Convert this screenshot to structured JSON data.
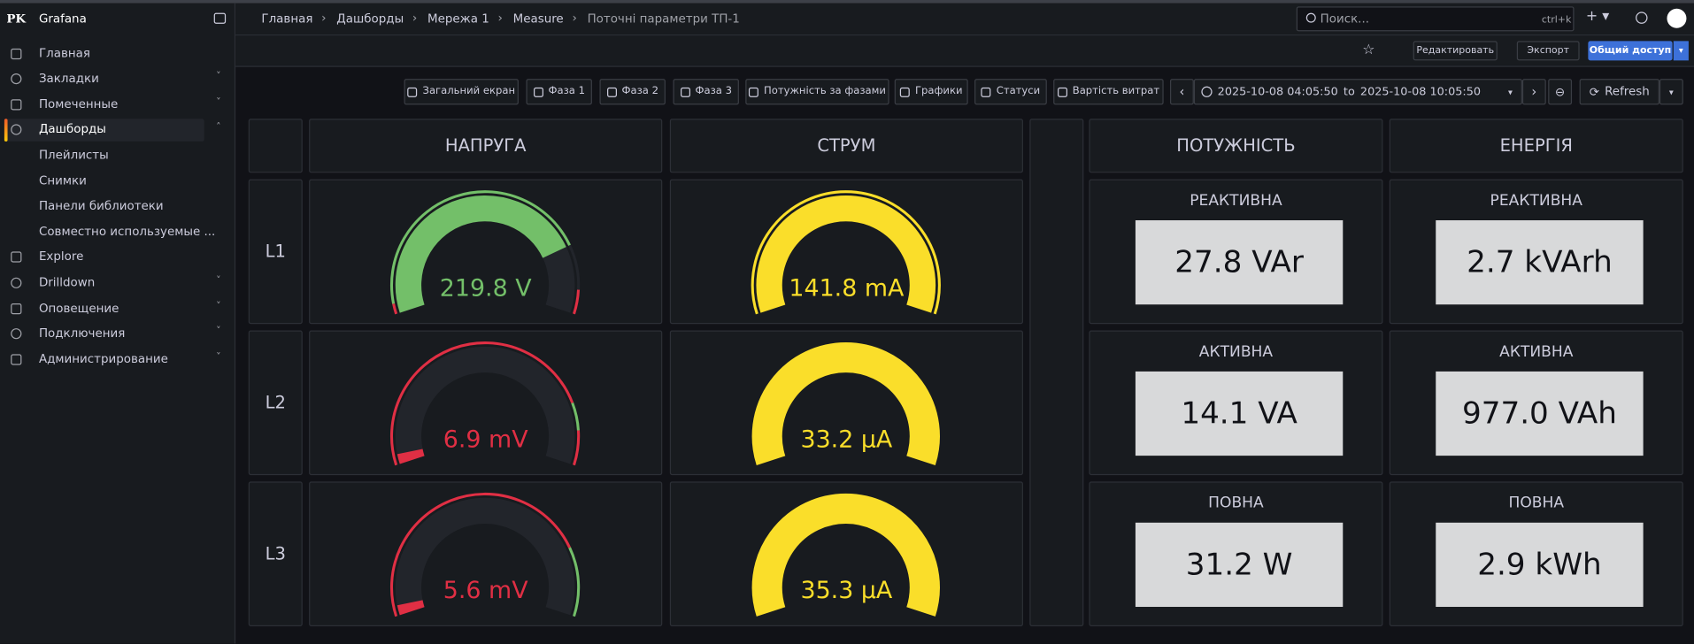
{
  "sidebar": {
    "logo": "PK",
    "app": "Grafana",
    "menu": [
      "Главная",
      "Закладки",
      "Помеченные",
      "Дашборды",
      "Плейлисты",
      "Снимки",
      "Панели библиотеки",
      "Совместно используемые ...",
      "Explore",
      "Drilldown",
      "Оповещение",
      "Подключения",
      "Администрирование"
    ]
  },
  "breadcrumbs": [
    "Главная",
    "Дашборды",
    "Мережа 1",
    "Measure",
    "Поточні параметри ТП-1"
  ],
  "search": {
    "placeholder": "Поиск...",
    "shortcut": "ctrl+k"
  },
  "actions": {
    "edit": "Редактировать",
    "export": "Экспорт",
    "share": "Общий доступ"
  },
  "links": [
    "Загальний екран",
    "Фаза 1",
    "Фаза 2",
    "Фаза 3",
    "Потужність за фазами",
    "Графики",
    "Статуси",
    "Вартість витрат"
  ],
  "time_range": {
    "from": "2025-10-08 04:05:50",
    "separator": "to",
    "to": "2025-10-08 10:05:50"
  },
  "refresh": "Refresh",
  "headers": {
    "voltage": "НАПРУГА",
    "current": "СТРУМ",
    "power": "ПОТУЖНІСТЬ",
    "energy": "ЕНЕРГІЯ"
  },
  "rows": [
    {
      "phase": "L1",
      "voltage": "219.8 V",
      "current": "141.8 mA",
      "power_title": "РЕАКТИВНА",
      "power": "27.8 VAr",
      "energy_title": "РЕАКТИВНА",
      "energy": "2.7 kVArh"
    },
    {
      "phase": "L2",
      "voltage": "6.9 mV",
      "current": "33.2 µA",
      "power_title": "АКТИВНА",
      "power": "14.1 VA",
      "energy_title": "АКТИВНА",
      "energy": "977.0 VAh"
    },
    {
      "phase": "L3",
      "voltage": "5.6 mV",
      "current": "35.3 µA",
      "power_title": "ПОВНА",
      "power": "31.2 W",
      "energy_title": "ПОВНА",
      "energy": "2.9 kWh"
    }
  ]
}
